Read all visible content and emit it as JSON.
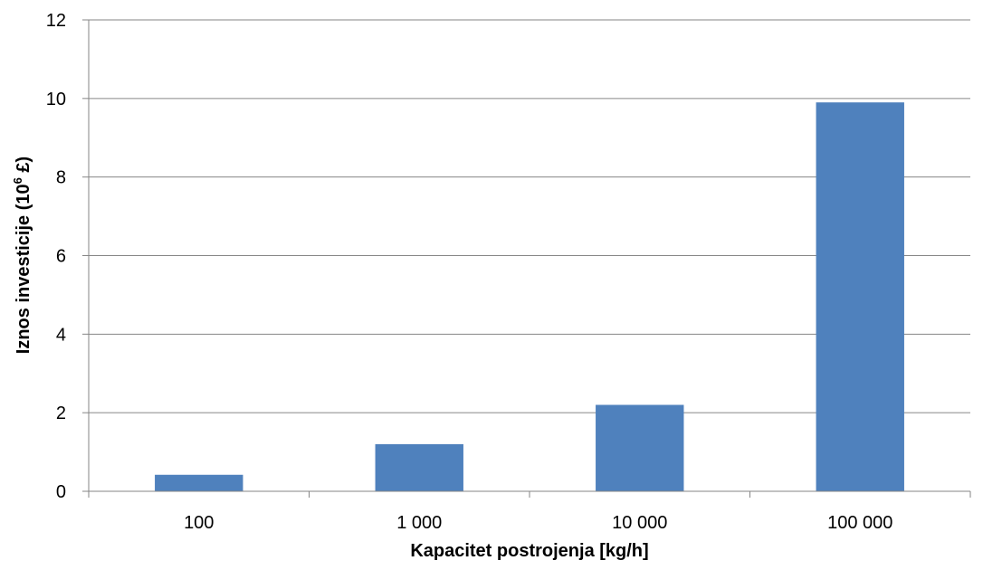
{
  "chart_data": {
    "type": "bar",
    "categories": [
      "100",
      "1 000",
      "10 000",
      "100 000"
    ],
    "values": [
      0.42,
      1.2,
      2.2,
      9.9
    ],
    "title": "",
    "xlabel": "Kapacitet postrojenja [kg/h]",
    "ylabel": {
      "prefix": "Iznos investicije (10",
      "superscript": "6",
      "suffix": " £)"
    },
    "ylim": [
      0,
      12
    ],
    "yticks": [
      "0",
      "2",
      "4",
      "6",
      "8",
      "10",
      "12"
    ],
    "grid": true,
    "legend": "none",
    "bar_color": "#4F81BD"
  }
}
